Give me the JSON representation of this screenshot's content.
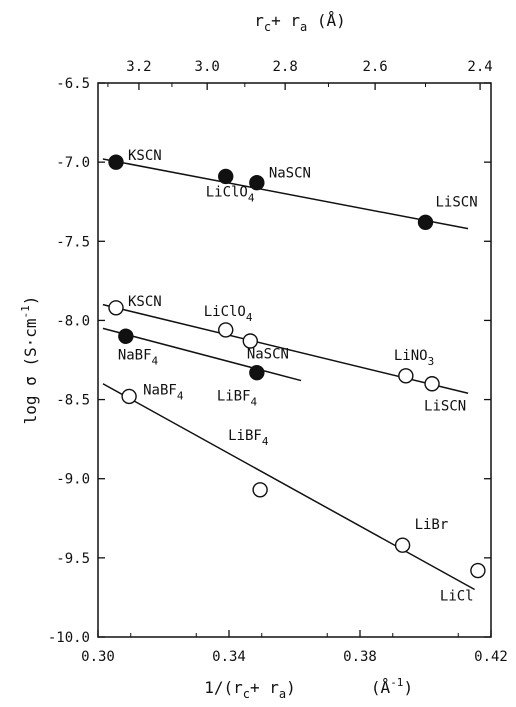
{
  "chart_data": {
    "type": "scatter",
    "title": "",
    "xlabel": "1/(r",
    "xlabel_sub": "c",
    "xlabel_mid": "+ r",
    "xlabel_sub2": "a",
    "xlabel_close": ")",
    "xlabel_unit": "(Å",
    "xlabel_unit_sup": "-1",
    "xlabel_unit_close": ")",
    "ylabel": "log σ (S·cm",
    "ylabel_sup": "-1",
    "ylabel_close": ")",
    "top_label": "r",
    "top_label_sub": "c",
    "top_label_mid": "+ r",
    "top_label_sub2": "a",
    "top_label_unit": "(Å)",
    "xlim": [
      0.3,
      0.42
    ],
    "ylim": [
      -10.0,
      -6.5
    ],
    "x_ticks": [
      0.3,
      0.34,
      0.38,
      0.42
    ],
    "x_tick_labels": [
      "0.30",
      "0.34",
      "0.38",
      "0.42"
    ],
    "y_ticks": [
      -6.5,
      -7.0,
      -7.5,
      -8.0,
      -8.5,
      -9.0,
      -9.5,
      -10.0
    ],
    "y_tick_labels": [
      "-6.5",
      "-7.0",
      "-7.5",
      "-8.0",
      "-8.5",
      "-9.0",
      "-9.5",
      "-10.0"
    ],
    "top_ticks": [
      3.2,
      3.0,
      2.8,
      2.6,
      2.4
    ],
    "top_tick_labels": [
      "3.2",
      "3.0",
      "2.8",
      "2.6",
      "2.4"
    ],
    "grid": false,
    "series": [
      {
        "marker": "filled",
        "points": [
          {
            "x": 0.3055,
            "y": -7.0,
            "label": "KSCN"
          },
          {
            "x": 0.339,
            "y": -7.09,
            "label": "LiClO",
            "sub": "4"
          },
          {
            "x": 0.3485,
            "y": -7.13,
            "label": "NaSCN"
          },
          {
            "x": 0.4,
            "y": -7.38,
            "label": "LiSCN"
          }
        ],
        "fit": [
          [
            0.3015,
            -6.98
          ],
          [
            0.413,
            -7.42
          ]
        ]
      },
      {
        "marker": "open",
        "points": [
          {
            "x": 0.3055,
            "y": -7.92,
            "label": "KSCN"
          },
          {
            "x": 0.339,
            "y": -8.06,
            "label": "LiClO",
            "sub": "4"
          },
          {
            "x": 0.3465,
            "y": -8.13,
            "label": ""
          },
          {
            "x": 0.394,
            "y": -8.35,
            "label": "LiNO",
            "sub": "3"
          },
          {
            "x": 0.402,
            "y": -8.4,
            "label": "LiSCN"
          }
        ],
        "fit": [
          [
            0.3015,
            -7.9
          ],
          [
            0.413,
            -8.46
          ]
        ]
      },
      {
        "marker": "filled",
        "points": [
          {
            "x": 0.3085,
            "y": -8.1,
            "label": "NaBF",
            "sub": "4"
          },
          {
            "x": 0.3485,
            "y": -8.33,
            "label": "NaSCN"
          }
        ],
        "fit": [
          [
            0.3015,
            -8.05
          ],
          [
            0.362,
            -8.38
          ]
        ]
      },
      {
        "marker": "open",
        "points": [
          {
            "x": 0.3095,
            "y": -8.48,
            "label": "NaBF",
            "sub": "4"
          },
          {
            "x": 0.3495,
            "y": -9.07,
            "label": "LiBF",
            "sub": "4"
          },
          {
            "x": 0.393,
            "y": -9.42,
            "label": "LiBr"
          },
          {
            "x": 0.416,
            "y": -9.58,
            "label": "LiCl"
          }
        ],
        "fit": [
          [
            0.3015,
            -8.4
          ],
          [
            0.415,
            -9.7
          ]
        ]
      }
    ],
    "extra_labels": [
      {
        "text": "LiBF",
        "sub": "4",
        "near": [
          0.3485,
          -8.33
        ]
      }
    ]
  }
}
